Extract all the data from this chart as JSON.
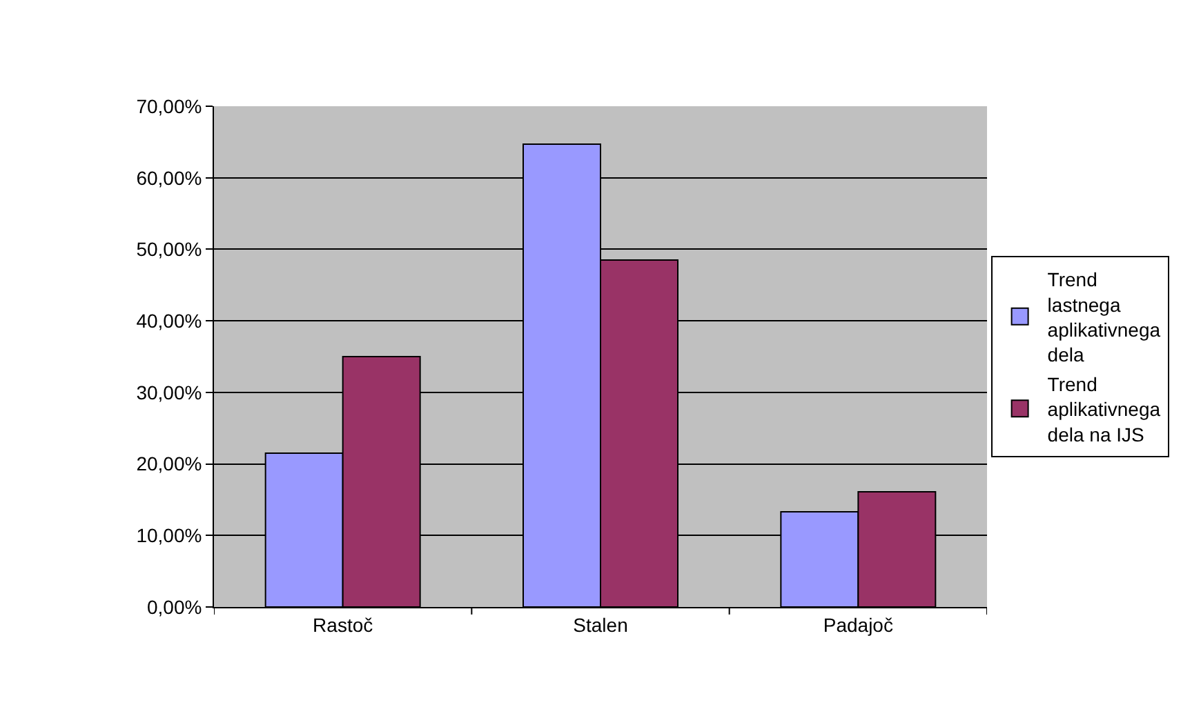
{
  "chart_data": {
    "type": "bar",
    "categories": [
      "Rastoč",
      "Stalen",
      "Padajoč"
    ],
    "series": [
      {
        "name": "Trend lastnega aplikativnega dela",
        "color": "#9999ff",
        "values": [
          21.5,
          64.7,
          13.3
        ]
      },
      {
        "name": "Trend aplikativnega dela na IJS",
        "color": "#993366",
        "values": [
          35.0,
          48.5,
          16.1
        ]
      }
    ],
    "ylim": [
      0,
      70
    ],
    "yticks": [
      {
        "value": 0,
        "label": "0,00%"
      },
      {
        "value": 10,
        "label": "10,00%"
      },
      {
        "value": 20,
        "label": "20,00%"
      },
      {
        "value": 30,
        "label": "30,00%"
      },
      {
        "value": 40,
        "label": "40,00%"
      },
      {
        "value": 50,
        "label": "50,00%"
      },
      {
        "value": 60,
        "label": "60,00%"
      },
      {
        "value": 70,
        "label": "70,00%"
      }
    ],
    "grid": "y",
    "legend": "right"
  }
}
